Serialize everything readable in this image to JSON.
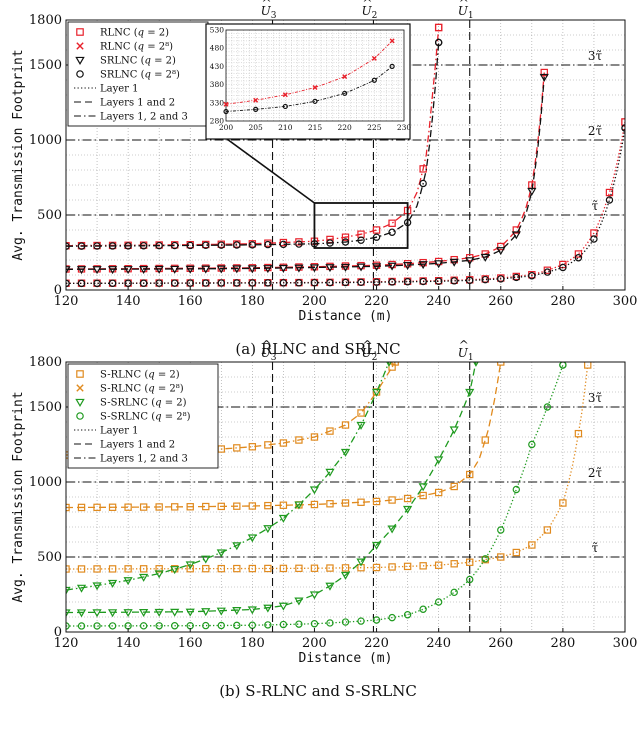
{
  "chart_data": [
    {
      "type": "line",
      "caption": "(a) RLNC and SRLNC",
      "xlabel": "Distance (m)",
      "ylabel": "Avg. Transmission Footprint",
      "xlim": [
        120,
        300
      ],
      "ylim": [
        0,
        1800
      ],
      "xticks": [
        120,
        140,
        160,
        180,
        200,
        220,
        240,
        260,
        280,
        300
      ],
      "yticks": [
        0,
        500,
        1000,
        1500,
        1800
      ],
      "grid": true,
      "legend_position": "top-left",
      "vlines": [
        {
          "x": 186.5,
          "label_base": "U",
          "label_sub": "3"
        },
        {
          "x": 219,
          "label_base": "U",
          "label_sub": "2"
        },
        {
          "x": 250,
          "label_base": "U",
          "label_sub": "1"
        }
      ],
      "hlines": [
        {
          "y": 500,
          "label": "τ̃"
        },
        {
          "y": 1000,
          "label": "2τ̃"
        },
        {
          "y": 1500,
          "label": "3τ̃"
        }
      ],
      "legend": [
        {
          "marker": "square",
          "color": "#e8202a",
          "line": "none",
          "text": "RLNC (q = 2)"
        },
        {
          "marker": "x",
          "color": "#e8202a",
          "line": "none",
          "text": "RLNC (q = 2⁸)"
        },
        {
          "marker": "triangle",
          "color": "#111111",
          "line": "none",
          "text": "SRLNC (q = 2)"
        },
        {
          "marker": "circle",
          "color": "#111111",
          "line": "none",
          "text": "SRLNC (q = 2⁸)"
        },
        {
          "marker": "none",
          "color": "#111111",
          "line": "dotted",
          "text": "Layer 1"
        },
        {
          "marker": "none",
          "color": "#111111",
          "line": "dashed",
          "text": "Layers 1 and 2"
        },
        {
          "marker": "none",
          "color": "#111111",
          "line": "dashdot",
          "text": "Layers 1, 2 and 3"
        }
      ],
      "series": [
        {
          "group": "Layer 1",
          "color": "#e8202a",
          "marker": "square",
          "line": "dotted",
          "x": [
            120,
            140,
            160,
            180,
            200,
            220,
            240,
            250,
            260,
            270,
            280,
            285,
            290,
            295,
            298,
            300
          ],
          "y": [
            45,
            46,
            47,
            48,
            50,
            55,
            62,
            68,
            80,
            102,
            170,
            240,
            380,
            650,
            900,
            1120
          ]
        },
        {
          "group": "Layer 1",
          "color": "#111111",
          "marker": "circle",
          "line": "dotted",
          "x": [
            120,
            140,
            160,
            180,
            200,
            220,
            240,
            250,
            260,
            270,
            280,
            285,
            290,
            295,
            298,
            300
          ],
          "y": [
            44,
            45,
            46,
            47,
            48,
            52,
            58,
            64,
            74,
            95,
            150,
            215,
            340,
            600,
            850,
            1080
          ]
        },
        {
          "group": "Layers 1 and 2",
          "color": "#e8202a",
          "marker": "square",
          "line": "dashed",
          "x": [
            120,
            140,
            160,
            180,
            200,
            220,
            230,
            240,
            250,
            255,
            260,
            265,
            268,
            270,
            272,
            274
          ],
          "y": [
            140,
            142,
            145,
            148,
            155,
            165,
            175,
            190,
            215,
            240,
            290,
            400,
            540,
            700,
            1000,
            1450
          ]
        },
        {
          "group": "Layers 1 and 2",
          "color": "#111111",
          "marker": "triangle",
          "line": "dashed",
          "x": [
            120,
            140,
            160,
            180,
            200,
            220,
            230,
            240,
            250,
            255,
            260,
            265,
            268,
            270,
            272,
            274
          ],
          "y": [
            138,
            139,
            141,
            144,
            150,
            158,
            166,
            178,
            198,
            220,
            265,
            370,
            500,
            660,
            960,
            1420
          ]
        },
        {
          "group": "Layers 1, 2 and 3",
          "color": "#e8202a",
          "marker": "square",
          "line": "dashdot",
          "x": [
            120,
            140,
            160,
            180,
            200,
            205,
            210,
            215,
            220,
            225,
            230,
            233,
            236,
            238,
            240
          ],
          "y": [
            295,
            298,
            302,
            308,
            325,
            337,
            352,
            372,
            400,
            445,
            530,
            650,
            900,
            1300,
            1750
          ]
        },
        {
          "group": "Layers 1, 2 and 3",
          "color": "#111111",
          "marker": "circle",
          "line": "dashdot",
          "x": [
            120,
            140,
            160,
            180,
            200,
            205,
            210,
            215,
            220,
            225,
            230,
            233,
            236,
            238,
            240
          ],
          "y": [
            292,
            294,
            297,
            301,
            308,
            313,
            320,
            332,
            352,
            385,
            450,
            560,
            800,
            1150,
            1650
          ]
        }
      ],
      "inset": {
        "source_box_x": [
          200,
          230
        ],
        "source_box_y": [
          280,
          580
        ],
        "xlim": [
          200,
          230
        ],
        "ylim": [
          280,
          530
        ],
        "xticks": [
          200,
          205,
          210,
          215,
          220,
          225,
          230
        ],
        "yticks": [
          280,
          330,
          380,
          430,
          480,
          530
        ],
        "series": [
          {
            "color": "#e8202a",
            "marker": "x",
            "x": [
              200,
              205,
              210,
              215,
              220,
              225,
              228
            ],
            "y": [
              326,
              337,
              352,
              372,
              402,
              452,
              500
            ]
          },
          {
            "color": "#111111",
            "marker": "circle",
            "x": [
              200,
              205,
              210,
              215,
              220,
              225,
              228
            ],
            "y": [
              306,
              312,
              320,
              334,
              356,
              392,
              430
            ]
          }
        ]
      }
    },
    {
      "type": "line",
      "caption": "(b) S-RLNC and S-SRLNC",
      "xlabel": "Distance (m)",
      "ylabel": "Avg. Transmission Footprint",
      "xlim": [
        120,
        300
      ],
      "ylim": [
        0,
        1800
      ],
      "xticks": [
        120,
        140,
        160,
        180,
        200,
        220,
        240,
        260,
        280,
        300
      ],
      "yticks": [
        0,
        500,
        1000,
        1500,
        1800
      ],
      "grid": true,
      "legend_position": "top-left",
      "vlines": [
        {
          "x": 186.5,
          "label_base": "U",
          "label_sub": "3"
        },
        {
          "x": 219,
          "label_base": "U",
          "label_sub": "2"
        },
        {
          "x": 250,
          "label_base": "U",
          "label_sub": "1"
        }
      ],
      "hlines": [
        {
          "y": 500,
          "label": "τ̃"
        },
        {
          "y": 1000,
          "label": "2τ̃"
        },
        {
          "y": 1500,
          "label": "3τ̃"
        }
      ],
      "legend": [
        {
          "marker": "square",
          "color": "#e08a1e",
          "line": "none",
          "text": "S-RLNC (q = 2)"
        },
        {
          "marker": "x",
          "color": "#e08a1e",
          "line": "none",
          "text": "S-RLNC (q = 2⁸)"
        },
        {
          "marker": "triangle",
          "color": "#1f9a1f",
          "line": "none",
          "text": "S-SRLNC (q = 2)"
        },
        {
          "marker": "circle",
          "color": "#1f9a1f",
          "line": "none",
          "text": "S-SRLNC (q = 2⁸)"
        },
        {
          "marker": "none",
          "color": "#111111",
          "line": "dotted",
          "text": "Layer 1"
        },
        {
          "marker": "none",
          "color": "#111111",
          "line": "dashed",
          "text": "Layers 1 and 2"
        },
        {
          "marker": "none",
          "color": "#111111",
          "line": "dashdot",
          "text": "Layers 1, 2 and 3"
        }
      ],
      "series": [
        {
          "group": "Layer 1",
          "color": "#e08a1e",
          "marker": "square",
          "line": "dotted",
          "x": [
            120,
            140,
            160,
            180,
            200,
            220,
            240,
            250,
            260,
            265,
            270,
            275,
            280,
            283,
            286,
            288
          ],
          "y": [
            420,
            421,
            422,
            423,
            425,
            430,
            445,
            465,
            500,
            530,
            580,
            680,
            860,
            1100,
            1450,
            1780
          ]
        },
        {
          "group": "Layers 1 and 2",
          "color": "#e08a1e",
          "marker": "square",
          "line": "dashed",
          "x": [
            120,
            140,
            160,
            180,
            200,
            220,
            230,
            240,
            245,
            250,
            253,
            256,
            258,
            260
          ],
          "y": [
            830,
            832,
            835,
            840,
            850,
            870,
            890,
            930,
            970,
            1050,
            1150,
            1350,
            1550,
            1800
          ]
        },
        {
          "group": "Layers 1, 2 and 3",
          "color": "#e08a1e",
          "marker": "square",
          "line": "dashdot",
          "x": [
            120,
            140,
            160,
            180,
            190,
            200,
            210,
            215,
            220,
            223,
            226
          ],
          "y": [
            1180,
            1190,
            1205,
            1235,
            1260,
            1300,
            1380,
            1460,
            1600,
            1700,
            1800
          ]
        },
        {
          "group": "Layer 1",
          "color": "#1f9a1f",
          "marker": "circle",
          "line": "dotted",
          "x": [
            120,
            140,
            160,
            180,
            200,
            220,
            230,
            240,
            250,
            260,
            265,
            270,
            275,
            280
          ],
          "y": [
            40,
            41,
            42,
            45,
            55,
            80,
            115,
            200,
            350,
            680,
            950,
            1250,
            1500,
            1780
          ]
        },
        {
          "group": "Layers 1 and 2",
          "color": "#1f9a1f",
          "marker": "triangle",
          "line": "dashed",
          "x": [
            120,
            140,
            160,
            180,
            190,
            200,
            210,
            220,
            230,
            240,
            245,
            250,
            252
          ],
          "y": [
            130,
            132,
            135,
            150,
            175,
            250,
            380,
            580,
            820,
            1150,
            1350,
            1600,
            1800
          ]
        },
        {
          "group": "Layers 1, 2 and 3",
          "color": "#1f9a1f",
          "marker": "triangle",
          "line": "dashdot",
          "x": [
            120,
            130,
            140,
            150,
            160,
            170,
            180,
            190,
            200,
            210,
            215,
            220,
            224
          ],
          "y": [
            280,
            310,
            345,
            390,
            450,
            530,
            630,
            760,
            950,
            1200,
            1380,
            1600,
            1800
          ]
        }
      ]
    }
  ]
}
